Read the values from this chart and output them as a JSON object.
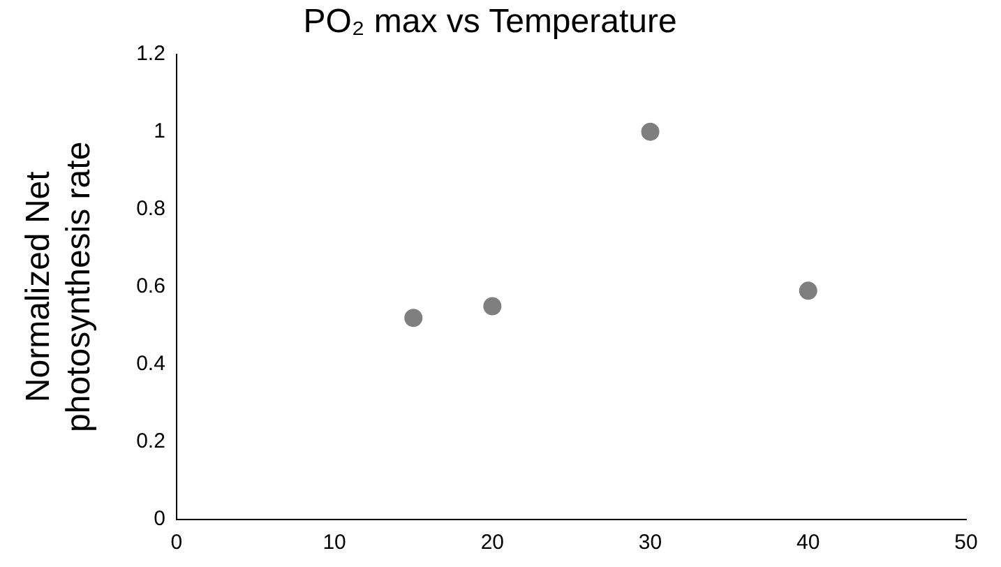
{
  "chart_data": {
    "type": "scatter",
    "title": "PO₂ max vs Temperature",
    "ylabel": "Normalized Net photosynthesis rate",
    "series": [
      {
        "color": "#7f7f7f",
        "x": [
          15,
          20,
          30,
          40
        ],
        "values": [
          0.52,
          0.55,
          1.0,
          0.59
        ]
      }
    ],
    "xlim": [
      0,
      50
    ],
    "xticks": [
      0,
      10,
      20,
      30,
      40,
      50
    ],
    "ylim": [
      0,
      1.2
    ],
    "yticks": [
      0,
      0.2,
      0.4,
      0.6,
      0.8,
      1,
      1.2
    ],
    "grid": false,
    "legend": false,
    "marker": "circle"
  }
}
